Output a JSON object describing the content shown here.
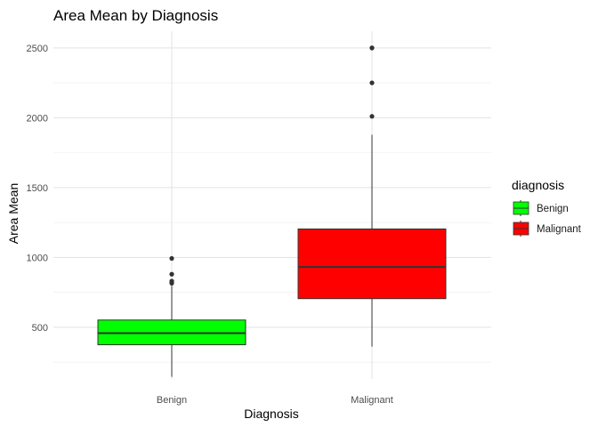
{
  "chart_data": {
    "type": "boxplot",
    "title": "Area Mean by Diagnosis",
    "xlabel": "Diagnosis",
    "ylabel": "Area Mean",
    "categories": [
      "Benign",
      "Malignant"
    ],
    "ylim": [
      130,
      2620
    ],
    "yticks": [
      500,
      1000,
      1500,
      2000,
      2500
    ],
    "grid": true,
    "legend": {
      "title": "diagnosis",
      "position": "right",
      "entries": [
        "Benign",
        "Malignant"
      ]
    },
    "boxes": [
      {
        "category": "Benign",
        "fill": "#00ff00",
        "whisker_low": 145,
        "q1": 375,
        "median": 458,
        "q3": 552,
        "whisker_high": 797,
        "outliers": [
          815,
          822,
          831,
          880,
          993
        ]
      },
      {
        "category": "Malignant",
        "fill": "#ff0000",
        "whisker_low": 362,
        "q1": 705,
        "median": 932,
        "q3": 1204,
        "whisker_high": 1878,
        "outliers": [
          2010,
          2250,
          2499,
          2501
        ]
      }
    ]
  }
}
